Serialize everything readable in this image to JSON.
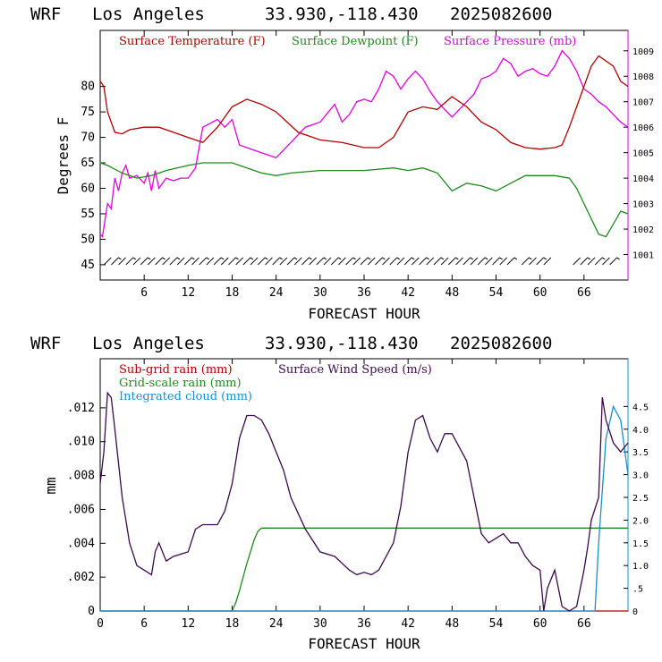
{
  "colors": {
    "temperature": "#b00000",
    "dewpoint": "#1e8a1e",
    "pressure": "#e000e0",
    "subgrid_rain": "#b00000",
    "wind": "#3a0a4a",
    "gridscale_rain": "#1e8a1e",
    "cloud": "#1a8fc8"
  },
  "chart_data": [
    {
      "type": "line",
      "header": {
        "model": "WRF",
        "location": "Los Angeles",
        "coords": "33.930,-118.430",
        "init": "2025082600"
      },
      "xlabel": "FORECAST HOUR",
      "ylabel": "Degrees F",
      "xlim": [
        0,
        72
      ],
      "ylim": [
        42,
        91
      ],
      "x_ticks": [
        6,
        12,
        18,
        24,
        30,
        36,
        42,
        48,
        54,
        60,
        66
      ],
      "x_tick_labels": [
        "6",
        "12",
        "18",
        "24",
        "30",
        "36",
        "42",
        "48",
        "54",
        "60",
        "66"
      ],
      "y_ticks": [
        45,
        50,
        55,
        60,
        65,
        70,
        75,
        80
      ],
      "y_tick_labels": [
        "45",
        "50",
        "55",
        "60",
        "65",
        "70",
        "75",
        "80"
      ],
      "y2lim": [
        1000.0,
        1009.8
      ],
      "y2_ticks": [
        1001,
        1002,
        1003,
        1004,
        1005,
        1006,
        1007,
        1008,
        1009
      ],
      "y2_tick_labels": [
        "1001",
        "1002",
        "1003",
        "1004",
        "1005",
        "1006",
        "1007",
        "1008",
        "1009"
      ],
      "grid": false,
      "legend": "top",
      "series": [
        {
          "name": "Surface Temperature (F)",
          "axis": "left",
          "x": [
            0,
            0.5,
            1,
            2,
            3,
            4,
            6,
            8,
            10,
            12,
            14,
            16,
            18,
            20,
            22,
            24,
            27,
            30,
            33,
            36,
            38,
            40,
            42,
            44,
            46,
            48,
            50,
            52,
            54,
            56,
            58,
            60,
            62,
            63,
            64,
            65,
            66,
            67,
            68,
            69,
            70,
            71,
            72
          ],
          "y": [
            81,
            80,
            75,
            71,
            70.7,
            71.5,
            72,
            72,
            71,
            70,
            69,
            72,
            76,
            77.5,
            76.5,
            75,
            71,
            69.5,
            69,
            68,
            68,
            70,
            75,
            76,
            75.5,
            78,
            76,
            73,
            71.5,
            69,
            68,
            67.7,
            68,
            68.5,
            72,
            76,
            80,
            84,
            86,
            85,
            84,
            81,
            80
          ]
        },
        {
          "name": "Surface Dewpoint (F)",
          "axis": "left",
          "x": [
            0,
            1,
            3,
            5,
            7,
            9,
            12,
            14,
            18,
            22,
            24,
            26,
            30,
            36,
            40,
            42,
            44,
            46,
            48,
            50,
            52,
            54,
            56,
            58,
            60,
            62,
            64,
            65,
            66,
            67,
            68,
            69,
            70,
            71,
            72
          ],
          "y": [
            65,
            64.5,
            63,
            62,
            62.5,
            63.5,
            64.5,
            65,
            65,
            63,
            62.5,
            63,
            63.5,
            63.5,
            64,
            63.5,
            64,
            63,
            59.5,
            61,
            60.5,
            59.5,
            61,
            62.5,
            62.5,
            62.5,
            62,
            60,
            57,
            54,
            51,
            50.5,
            53,
            55.5,
            55
          ]
        },
        {
          "name": "Surface Pressure (mb)",
          "axis": "right",
          "x": [
            0,
            0.3,
            1,
            1.5,
            2,
            2.5,
            3,
            3.5,
            4,
            5,
            6,
            6.5,
            7,
            7.5,
            8,
            9,
            10,
            11,
            12,
            13,
            14,
            16,
            17,
            18,
            19,
            20,
            22,
            24,
            26,
            28,
            30,
            32,
            33,
            34,
            35,
            36,
            37,
            38,
            39,
            40,
            41,
            42,
            43,
            44,
            45,
            46,
            47,
            48,
            49,
            50,
            51,
            52,
            53,
            54,
            55,
            56,
            57,
            58,
            59,
            60,
            61,
            62,
            63,
            64,
            65,
            66,
            67,
            68,
            69,
            70,
            71,
            72
          ],
          "y": [
            1001.8,
            1001.7,
            1003,
            1002.8,
            1004,
            1003.5,
            1004.2,
            1004.5,
            1004,
            1004.1,
            1003.8,
            1004.2,
            1003.5,
            1004.3,
            1003.6,
            1004,
            1003.9,
            1004,
            1004,
            1004.4,
            1006,
            1006.3,
            1006,
            1006.3,
            1005.3,
            1005.2,
            1005,
            1004.8,
            1005.4,
            1006,
            1006.2,
            1006.9,
            1006.2,
            1006.5,
            1007,
            1007.1,
            1007,
            1007.5,
            1008.2,
            1008,
            1007.5,
            1007.9,
            1008.2,
            1007.9,
            1007.4,
            1007,
            1006.7,
            1006.4,
            1006.7,
            1007,
            1007.3,
            1007.9,
            1008,
            1008.2,
            1008.7,
            1008.5,
            1008,
            1008.2,
            1008.3,
            1008.1,
            1008,
            1008.4,
            1009,
            1008.7,
            1008.2,
            1007.5,
            1007.3,
            1007,
            1006.8,
            1006.5,
            1006.2,
            1006
          ]
        }
      ],
      "wind_barbs": {
        "baseline_y": 45.7
      }
    },
    {
      "type": "line",
      "header": {
        "model": "WRF",
        "location": "Los Angeles",
        "coords": "33.930,-118.430",
        "init": "2025082600"
      },
      "xlabel": "FORECAST HOUR",
      "ylabel": "mm",
      "xlim": [
        0,
        72
      ],
      "ylim": [
        0,
        0.0149
      ],
      "x_ticks": [
        0,
        6,
        12,
        18,
        24,
        30,
        36,
        42,
        48,
        54,
        60,
        66
      ],
      "x_tick_labels": [
        "0",
        "6",
        "12",
        "18",
        "24",
        "30",
        "36",
        "42",
        "48",
        "54",
        "60",
        "66"
      ],
      "y_ticks": [
        0,
        0.002,
        0.004,
        0.006,
        0.008,
        0.01,
        0.012
      ],
      "y_tick_labels": [
        "0",
        ".002",
        ".004",
        ".006",
        ".008",
        ".010",
        ".012"
      ],
      "y2lim": [
        0,
        5.55
      ],
      "y2_ticks": [
        0,
        0.5,
        1,
        1.5,
        2,
        2.5,
        3,
        3.5,
        4,
        4.5
      ],
      "y2_tick_labels": [
        "0",
        ".5",
        "1.0",
        "1.5",
        "2.0",
        "2.5",
        "3.0",
        "3.5",
        "4.0",
        "4.5"
      ],
      "grid": false,
      "legend": "top-left",
      "series": [
        {
          "name": "Sub-grid rain (mm)",
          "axis": "left",
          "x": [
            0,
            72
          ],
          "y": [
            0,
            0
          ]
        },
        {
          "name": "Surface Wind Speed (m/s)",
          "axis": "right",
          "x": [
            0,
            0.5,
            1,
            1.5,
            2,
            3,
            4,
            5,
            6,
            7,
            7.5,
            8,
            9,
            10,
            12,
            13,
            14,
            16,
            17,
            18,
            19,
            20,
            21,
            22,
            23,
            24,
            25,
            26,
            28,
            30,
            32,
            34,
            35,
            36,
            37,
            38,
            40,
            41,
            42,
            43,
            44,
            45,
            46,
            47,
            48,
            49,
            50,
            51,
            52,
            53,
            54,
            55,
            56,
            57,
            58,
            59,
            60,
            60.5,
            61,
            62,
            63,
            64,
            65,
            66,
            66.5,
            67,
            68,
            68.5,
            69,
            70,
            71,
            72
          ],
          "y": [
            2.8,
            3.5,
            4.8,
            4.7,
            4.0,
            2.5,
            1.5,
            1.0,
            0.9,
            0.8,
            1.3,
            1.5,
            1.1,
            1.2,
            1.3,
            1.8,
            1.9,
            1.9,
            2.2,
            2.8,
            3.8,
            4.3,
            4.3,
            4.2,
            3.9,
            3.5,
            3.1,
            2.5,
            1.8,
            1.3,
            1.2,
            0.9,
            0.8,
            0.85,
            0.8,
            0.9,
            1.5,
            2.3,
            3.5,
            4.2,
            4.3,
            3.8,
            3.5,
            3.9,
            3.9,
            3.6,
            3.3,
            2.5,
            1.7,
            1.5,
            1.6,
            1.7,
            1.5,
            1.5,
            1.2,
            1.0,
            0.9,
            0.0,
            0.5,
            0.9,
            0.1,
            0.0,
            0.1,
            0.9,
            1.4,
            2.0,
            2.5,
            4.7,
            4.2,
            3.7,
            3.5,
            3.7
          ]
        },
        {
          "name": "Grid-scale rain (mm)",
          "axis": "left",
          "x": [
            0,
            18,
            18.5,
            19,
            20,
            21,
            21.5,
            22,
            25,
            30,
            40,
            50,
            60,
            70,
            72
          ],
          "y": [
            0,
            0,
            0.0005,
            0.0012,
            0.0028,
            0.0042,
            0.0047,
            0.0049,
            0.0049,
            0.0049,
            0.0049,
            0.0049,
            0.0049,
            0.0049,
            0.0049
          ]
        },
        {
          "name": "Integrated cloud (mm)",
          "axis": "right",
          "x": [
            0,
            67.5,
            68,
            69,
            70,
            71,
            72
          ],
          "y": [
            0,
            0,
            1.5,
            3.8,
            4.5,
            4.2,
            3.0
          ]
        }
      ]
    }
  ]
}
